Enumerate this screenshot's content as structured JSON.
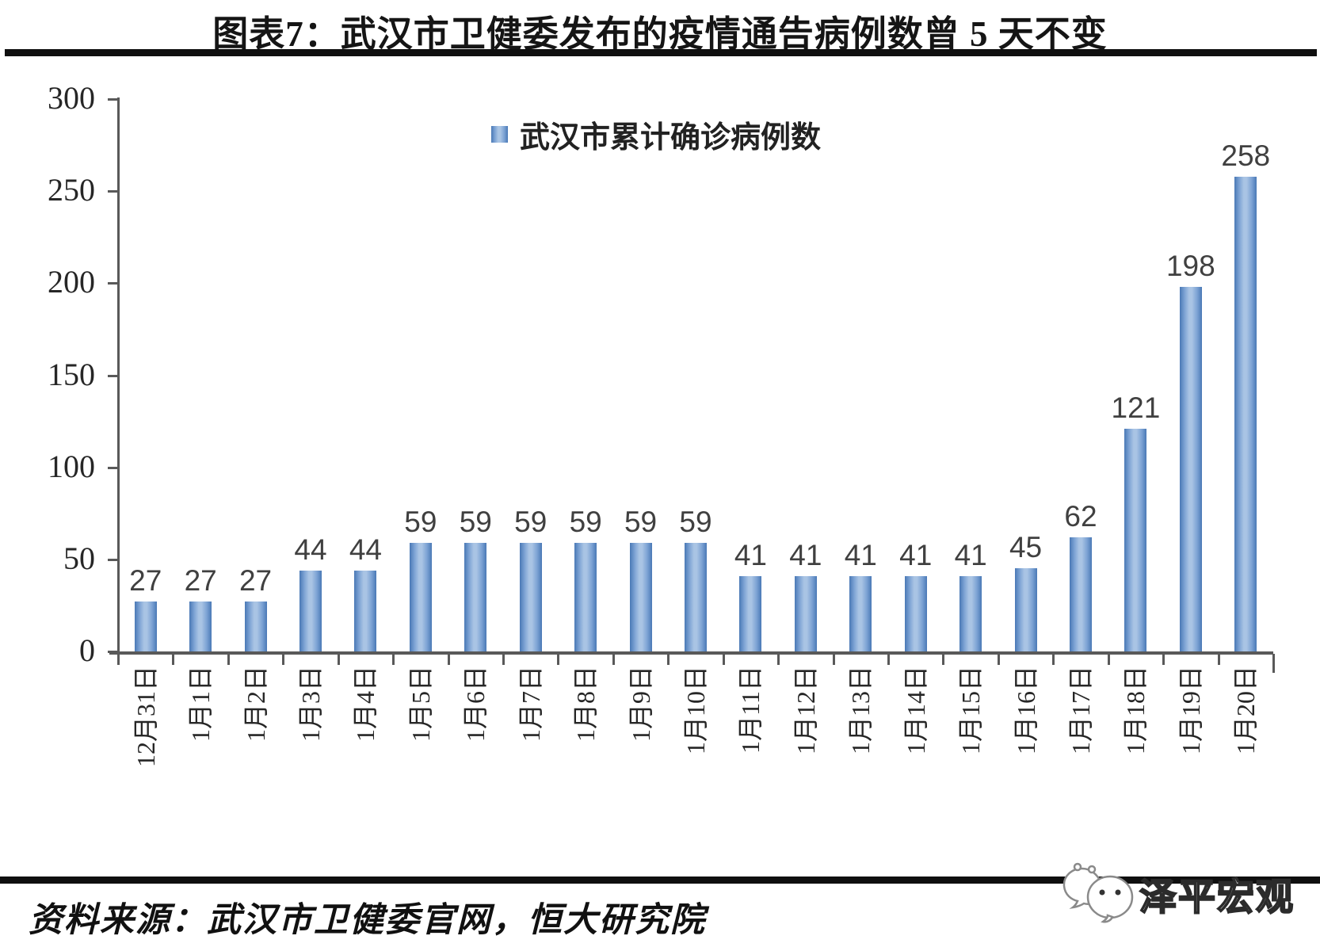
{
  "header": {
    "title": "图表7：武汉市卫健委发布的疫情通告病例数曾 5 天不变"
  },
  "chart_data": {
    "type": "bar",
    "title": "图表7：武汉市卫健委发布的疫情通告病例数曾 5 天不变",
    "series_name": "武汉市累计确诊病例数",
    "categories": [
      "12月31日",
      "1月1日",
      "1月2日",
      "1月3日",
      "1月4日",
      "1月5日",
      "1月6日",
      "1月7日",
      "1月8日",
      "1月9日",
      "1月10日",
      "1月11日",
      "1月12日",
      "1月13日",
      "1月14日",
      "1月15日",
      "1月16日",
      "1月17日",
      "1月18日",
      "1月19日",
      "1月20日"
    ],
    "values": [
      27,
      27,
      27,
      44,
      44,
      59,
      59,
      59,
      59,
      59,
      59,
      41,
      41,
      41,
      41,
      41,
      45,
      62,
      121,
      198,
      258
    ],
    "xlabel": "",
    "ylabel": "",
    "ylim": [
      0,
      300
    ],
    "yticks": [
      0,
      50,
      100,
      150,
      200,
      250,
      300
    ],
    "grid": false,
    "legend_position": "top-center",
    "value_labels": true
  },
  "colors": {
    "bar_edge": "#4a79b6",
    "bar_light": "#a9c4e4",
    "bar_mid": "#7da3d4",
    "axis": "#595959",
    "value_label": "#404040",
    "rule": "#0f0f0f"
  },
  "footer": {
    "source": "资料来源：武汉市卫健委官网，恒大研究院",
    "brand": "泽平宏观"
  }
}
